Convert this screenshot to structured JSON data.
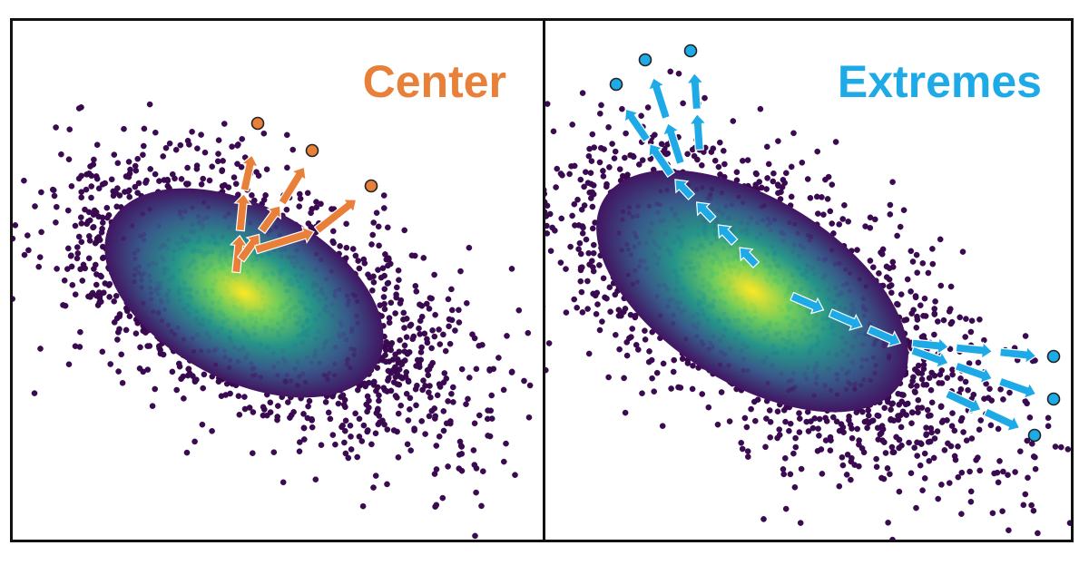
{
  "panels": [
    {
      "title": "Center",
      "title_color": "#e8803a",
      "theme": "center"
    },
    {
      "title": "Extremes",
      "title_color": "#1eaae6",
      "theme": "extremes"
    }
  ],
  "colors": {
    "center_arrow": "#e8803a",
    "extremes_arrow": "#1eaae6",
    "dot_outline": "#222222",
    "border": "#111111",
    "colormap": [
      "#440154",
      "#3b528b",
      "#21918c",
      "#5ec962",
      "#fde725"
    ]
  }
}
